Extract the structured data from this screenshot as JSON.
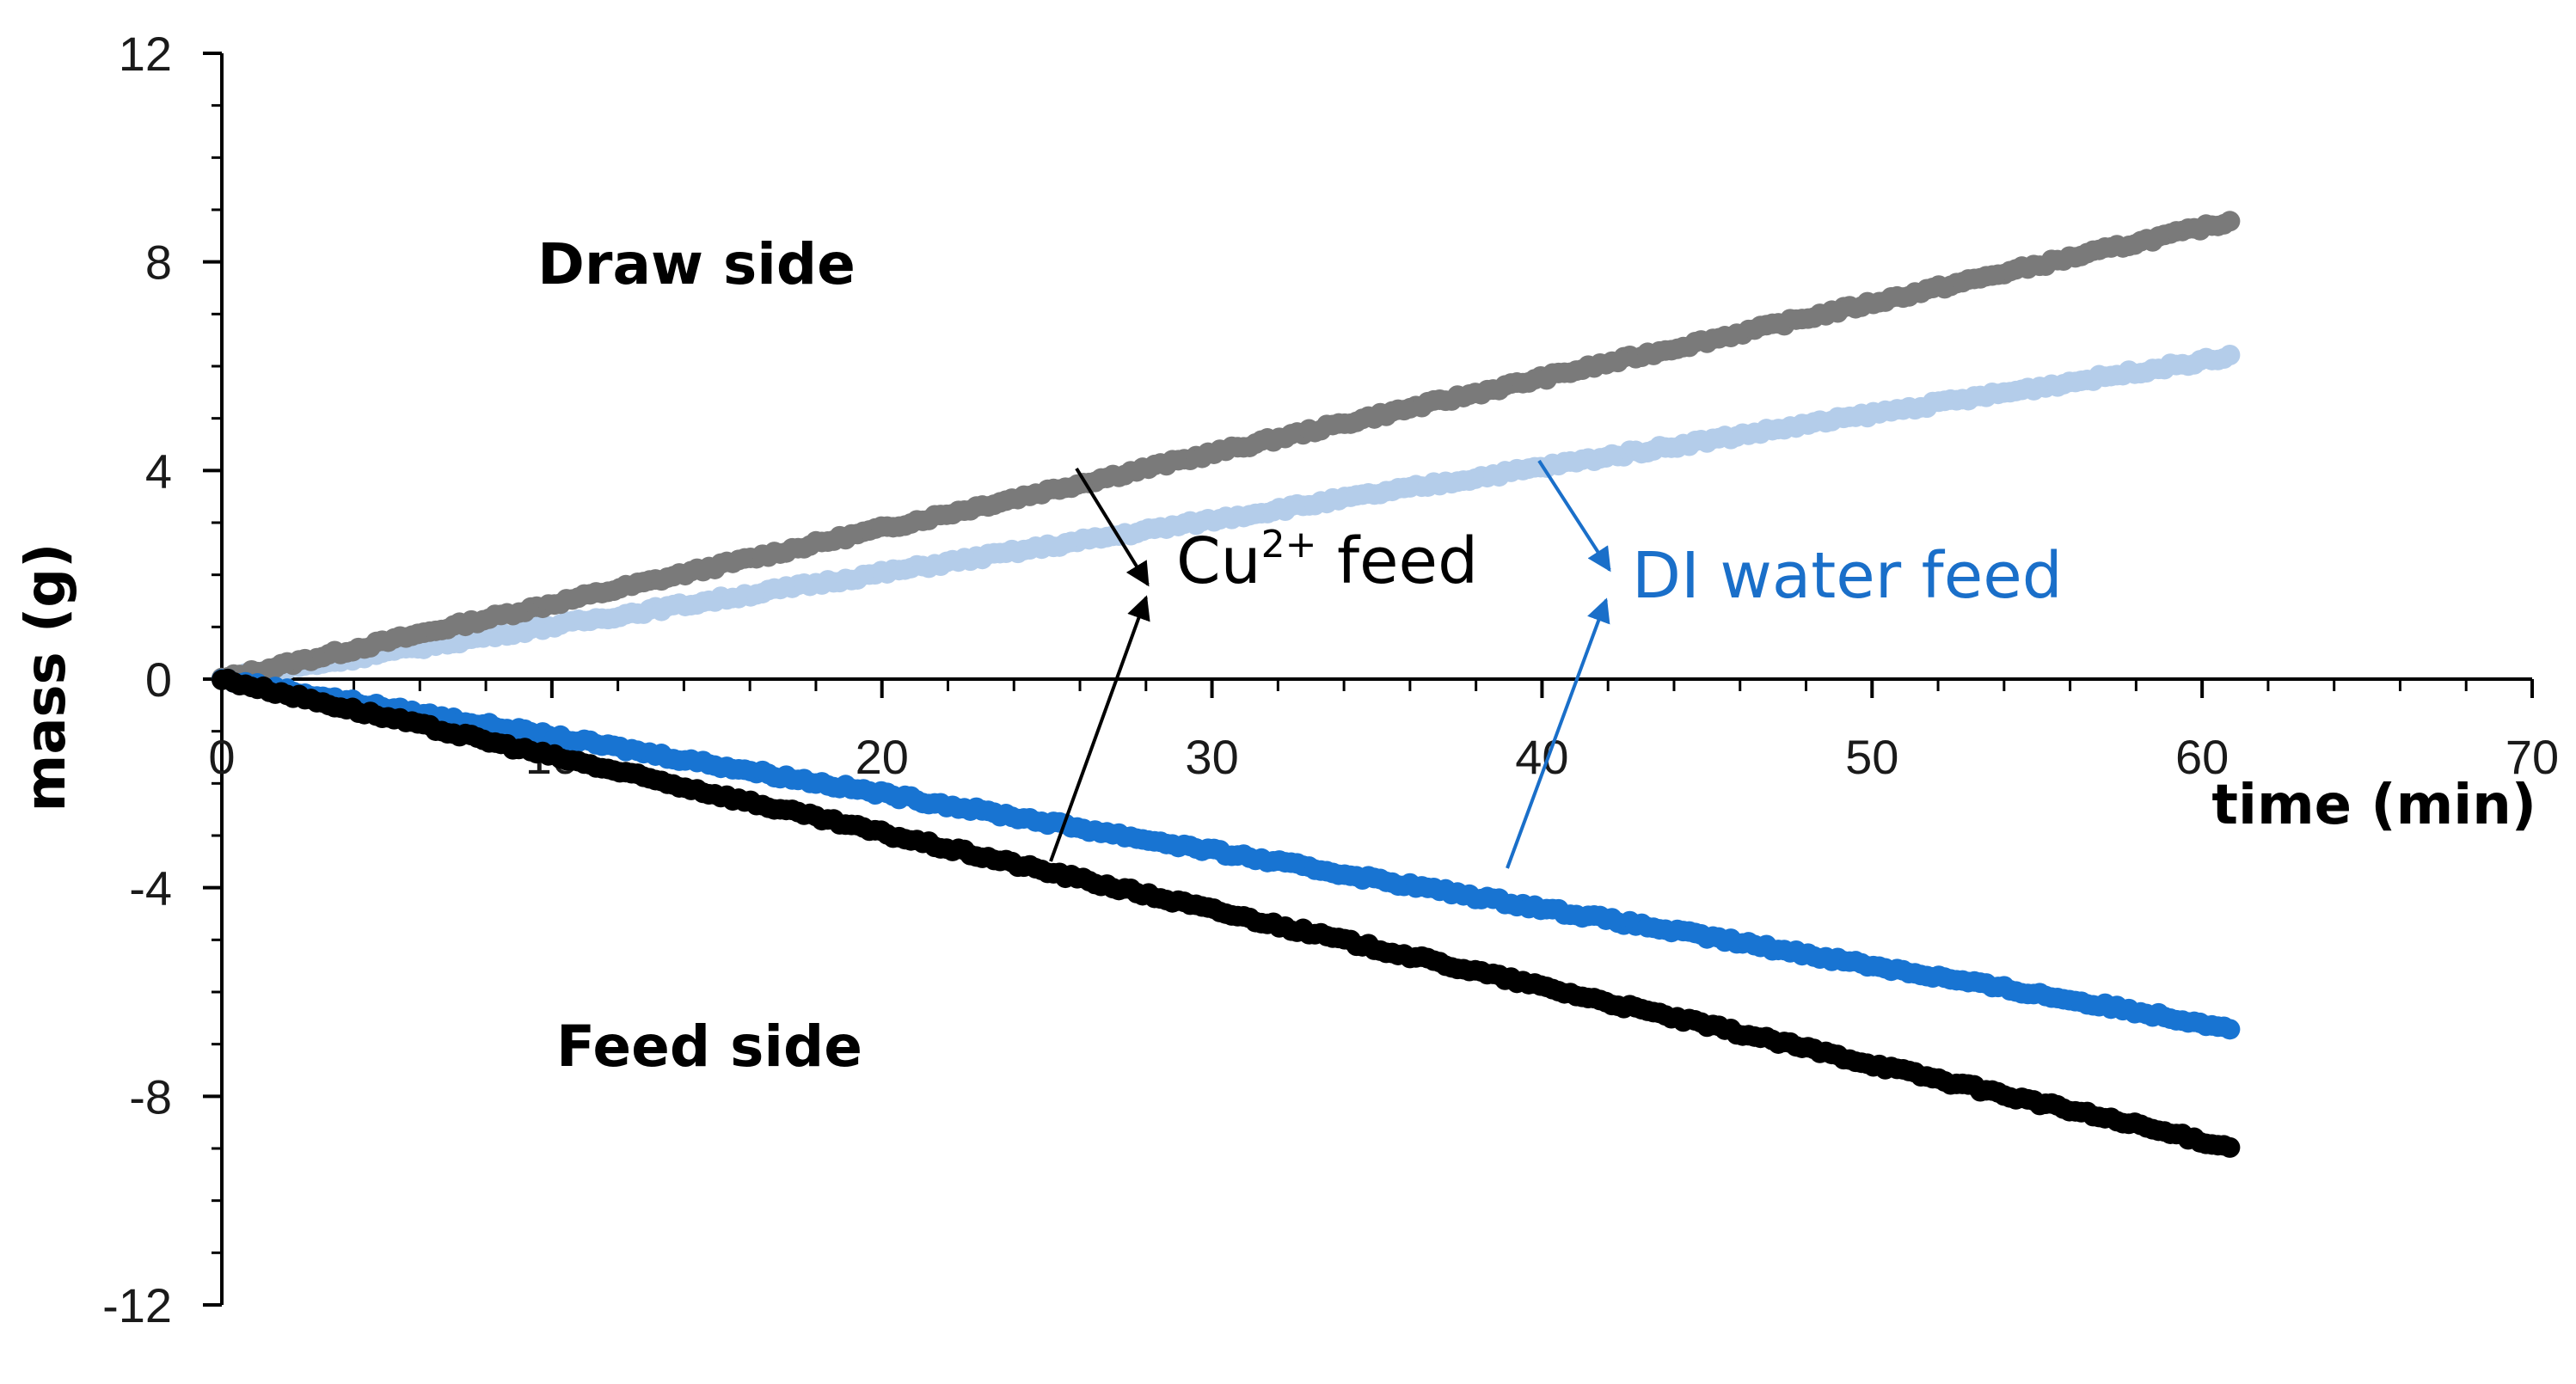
{
  "chart_data": {
    "type": "scatter",
    "xlabel": "time (min)",
    "ylabel": "mass (g)",
    "xlim": [
      0,
      70
    ],
    "ylim": [
      -12,
      12
    ],
    "x_ticks": [
      "0",
      "10",
      "20",
      "30",
      "40",
      "50",
      "60",
      "70"
    ],
    "y_ticks": [
      "12",
      "8",
      "4",
      "0",
      "-4",
      "-8",
      "-12"
    ],
    "x_tick_values": [
      0,
      10,
      20,
      30,
      40,
      50,
      60,
      70
    ],
    "y_tick_values": [
      12,
      8,
      4,
      0,
      -4,
      -8,
      -12
    ],
    "series": [
      {
        "name": "Draw side (Cu2+ feed)",
        "color": "#7a7a7a",
        "x_end": 61,
        "y_end": 8.8
      },
      {
        "name": "Draw side (DI water feed)",
        "color": "#b4cdea",
        "x_end": 61,
        "y_end": 6.2
      },
      {
        "name": "Feed side (DI water feed)",
        "color": "#1874d2",
        "x_end": 61,
        "y_end": -6.7
      },
      {
        "name": "Feed side (Cu2+ feed)",
        "color": "#000000",
        "x_end": 61,
        "y_end": -9.0
      }
    ],
    "region_labels": {
      "draw": "Draw side",
      "feed": "Feed side"
    },
    "annotations": {
      "cu_prefix": "Cu",
      "cu_sup": "2+",
      "cu_suffix": " feed",
      "cu_color": "#000000",
      "di": "DI water feed",
      "di_color": "#1a6fc9"
    }
  }
}
